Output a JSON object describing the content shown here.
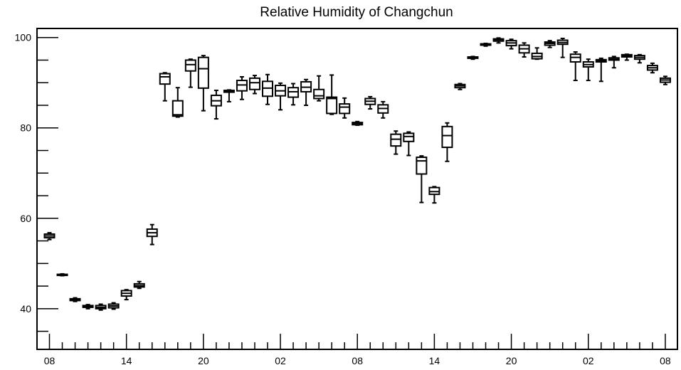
{
  "chart_data": {
    "type": "box",
    "title": "Relative Humidity of Changchun",
    "xlabel": "",
    "ylabel": "",
    "ylim": [
      31,
      102
    ],
    "y_ticks": [
      40,
      60,
      80,
      100
    ],
    "x_tick_labels": [
      "08",
      "14",
      "20",
      "02",
      "08",
      "14",
      "20",
      "02",
      "08"
    ],
    "grid": false,
    "boxes": [
      {
        "x": 0,
        "min": 55.3,
        "q1": 55.7,
        "median": 56.1,
        "q3": 56.5,
        "max": 56.8
      },
      {
        "x": 1,
        "min": 47.3,
        "q1": 47.4,
        "median": 47.5,
        "q3": 47.6,
        "max": 47.7
      },
      {
        "x": 2,
        "min": 41.6,
        "q1": 41.8,
        "median": 42.0,
        "q3": 42.2,
        "max": 42.4
      },
      {
        "x": 3,
        "min": 40.0,
        "q1": 40.3,
        "median": 40.5,
        "q3": 40.7,
        "max": 40.9
      },
      {
        "x": 4,
        "min": 39.7,
        "q1": 40.0,
        "median": 40.3,
        "q3": 40.7,
        "max": 41.0
      },
      {
        "x": 5,
        "min": 39.9,
        "q1": 40.2,
        "median": 40.6,
        "q3": 41.0,
        "max": 41.3
      },
      {
        "x": 6,
        "min": 42.0,
        "q1": 42.8,
        "median": 43.4,
        "q3": 44.0,
        "max": 44.2
      },
      {
        "x": 7,
        "min": 44.5,
        "q1": 44.8,
        "median": 45.1,
        "q3": 45.5,
        "max": 46.0
      },
      {
        "x": 8,
        "min": 54.2,
        "q1": 56.0,
        "median": 56.8,
        "q3": 57.6,
        "max": 58.6
      },
      {
        "x": 9,
        "min": 86.0,
        "q1": 89.7,
        "median": 91.3,
        "q3": 92.0,
        "max": 92.2
      },
      {
        "x": 10,
        "min": 82.4,
        "q1": 82.6,
        "median": 82.9,
        "q3": 86.0,
        "max": 88.9
      },
      {
        "x": 11,
        "min": 89.0,
        "q1": 92.6,
        "median": 94.0,
        "q3": 95.0,
        "max": 95.2
      },
      {
        "x": 12,
        "min": 83.8,
        "q1": 88.8,
        "median": 93.1,
        "q3": 95.6,
        "max": 96.0
      },
      {
        "x": 13,
        "min": 82.0,
        "q1": 84.9,
        "median": 86.0,
        "q3": 87.2,
        "max": 88.3
      },
      {
        "x": 14,
        "min": 85.8,
        "q1": 87.9,
        "median": 88.1,
        "q3": 88.3,
        "max": 88.4
      },
      {
        "x": 15,
        "min": 86.3,
        "q1": 88.2,
        "median": 89.5,
        "q3": 90.5,
        "max": 91.3
      },
      {
        "x": 16,
        "min": 87.6,
        "q1": 88.5,
        "median": 90.0,
        "q3": 91.0,
        "max": 91.6
      },
      {
        "x": 17,
        "min": 85.2,
        "q1": 87.0,
        "median": 88.8,
        "q3": 90.3,
        "max": 91.8
      },
      {
        "x": 18,
        "min": 84.0,
        "q1": 87.1,
        "median": 88.2,
        "q3": 89.4,
        "max": 89.9
      },
      {
        "x": 19,
        "min": 85.1,
        "q1": 86.8,
        "median": 88.0,
        "q3": 88.9,
        "max": 89.8
      },
      {
        "x": 20,
        "min": 85.0,
        "q1": 88.0,
        "median": 89.0,
        "q3": 90.2,
        "max": 90.7
      },
      {
        "x": 21,
        "min": 86.0,
        "q1": 86.5,
        "median": 87.1,
        "q3": 88.5,
        "max": 91.5
      },
      {
        "x": 22,
        "min": 83.0,
        "q1": 83.2,
        "median": 86.5,
        "q3": 86.8,
        "max": 91.7
      },
      {
        "x": 23,
        "min": 82.2,
        "q1": 83.2,
        "median": 84.6,
        "q3": 85.3,
        "max": 86.6
      },
      {
        "x": 24,
        "min": 80.6,
        "q1": 80.7,
        "median": 81.0,
        "q3": 81.2,
        "max": 81.4
      },
      {
        "x": 25,
        "min": 84.2,
        "q1": 85.2,
        "median": 85.9,
        "q3": 86.5,
        "max": 86.9
      },
      {
        "x": 26,
        "min": 82.2,
        "q1": 83.3,
        "median": 84.3,
        "q3": 85.1,
        "max": 85.8
      },
      {
        "x": 27,
        "min": 74.2,
        "q1": 76.0,
        "median": 77.5,
        "q3": 78.6,
        "max": 79.3
      },
      {
        "x": 28,
        "min": 73.9,
        "q1": 77.0,
        "median": 78.1,
        "q3": 78.8,
        "max": 79.1
      },
      {
        "x": 29,
        "min": 63.5,
        "q1": 69.8,
        "median": 72.7,
        "q3": 73.5,
        "max": 73.8
      },
      {
        "x": 30,
        "min": 63.4,
        "q1": 65.3,
        "median": 65.9,
        "q3": 66.8,
        "max": 67.0
      },
      {
        "x": 31,
        "min": 72.6,
        "q1": 75.7,
        "median": 78.3,
        "q3": 80.3,
        "max": 81.1
      },
      {
        "x": 32,
        "min": 88.5,
        "q1": 88.9,
        "median": 89.3,
        "q3": 89.6,
        "max": 89.8
      },
      {
        "x": 33,
        "min": 95.2,
        "q1": 95.4,
        "median": 95.5,
        "q3": 95.7,
        "max": 95.8
      },
      {
        "x": 34,
        "min": 98.1,
        "q1": 98.3,
        "median": 98.4,
        "q3": 98.6,
        "max": 98.7
      },
      {
        "x": 35,
        "min": 98.8,
        "q1": 99.2,
        "median": 99.5,
        "q3": 99.7,
        "max": 99.9
      },
      {
        "x": 36,
        "min": 97.5,
        "q1": 98.2,
        "median": 98.8,
        "q3": 99.3,
        "max": 99.6
      },
      {
        "x": 37,
        "min": 95.7,
        "q1": 96.6,
        "median": 97.5,
        "q3": 98.3,
        "max": 98.8
      },
      {
        "x": 38,
        "min": 95.2,
        "q1": 95.3,
        "median": 95.8,
        "q3": 96.5,
        "max": 97.7
      },
      {
        "x": 39,
        "min": 97.8,
        "q1": 98.3,
        "median": 98.7,
        "q3": 99.0,
        "max": 99.3
      },
      {
        "x": 40,
        "min": 95.6,
        "q1": 98.5,
        "median": 98.9,
        "q3": 99.4,
        "max": 99.8
      },
      {
        "x": 41,
        "min": 90.5,
        "q1": 94.6,
        "median": 95.6,
        "q3": 96.3,
        "max": 96.8
      },
      {
        "x": 42,
        "min": 90.5,
        "q1": 93.5,
        "median": 94.0,
        "q3": 94.6,
        "max": 95.2
      },
      {
        "x": 43,
        "min": 90.3,
        "q1": 94.6,
        "median": 94.9,
        "q3": 95.1,
        "max": 95.4
      },
      {
        "x": 44,
        "min": 93.3,
        "q1": 95.0,
        "median": 95.2,
        "q3": 95.5,
        "max": 95.8
      },
      {
        "x": 45,
        "min": 95.0,
        "q1": 95.7,
        "median": 96.0,
        "q3": 96.2,
        "max": 96.3
      },
      {
        "x": 46,
        "min": 94.4,
        "q1": 95.2,
        "median": 95.6,
        "q3": 96.0,
        "max": 96.2
      },
      {
        "x": 47,
        "min": 92.2,
        "q1": 92.8,
        "median": 93.3,
        "q3": 93.8,
        "max": 94.3
      },
      {
        "x": 48,
        "min": 89.6,
        "q1": 90.1,
        "median": 90.6,
        "q3": 91.0,
        "max": 91.4
      }
    ]
  }
}
